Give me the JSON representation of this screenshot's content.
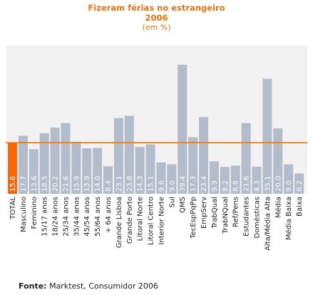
{
  "header": {
    "title_line1": "Fizeram férias no estrangeiro",
    "title_line2": "2006",
    "subtitle": "(em %)"
  },
  "footer": {
    "source_label": "Fonte:",
    "source_text": "Marktest, Consumidor 2006"
  },
  "colors": {
    "plot_background": "#f2f2f2",
    "bar": "#b3bccb",
    "highlight_bar": "#ff6600",
    "reference_line": "#e8720c",
    "value_label": "#ffffff",
    "title": "#e8720c"
  },
  "chart_data": {
    "type": "bar",
    "title": "Fizeram férias no estrangeiro 2006",
    "subtitle": "(em %)",
    "xlabel": "",
    "ylabel": "",
    "ylim": [
      0,
      42
    ],
    "grid": false,
    "legend": "none",
    "reference_line": 15.6,
    "highlight_index": 0,
    "categories": [
      "TOTAL",
      "Masculino",
      "Feminino",
      "15/17 anos",
      "18/24 anos",
      "25/34 anos",
      "35/44 anos",
      "45/54 anos",
      "55/64 anos",
      "+ 64 anos",
      "Grande Lisboa",
      "Grande Porto",
      "Litoral Norte",
      "Litoral Centro",
      "Interior Norte",
      "Sul",
      "QMS",
      "TecEspPqPp",
      "EmpServ",
      "TrabQual",
      "TrabNQual",
      "Ref/Pens",
      "Estudantes",
      "Domésticas",
      "Alta/Média Alta",
      "Média",
      "Média Baixa",
      "Baixa"
    ],
    "value_labels": [
      "15.6",
      "17.7",
      "13.6",
      "18.5",
      "20.2",
      "21.6",
      "15.9",
      "13.9",
      "14.0",
      "8.4",
      "23.1",
      "23.8",
      "14.3",
      "15.1",
      "9.6",
      "9.0",
      "39.4",
      "17.3",
      "23.4",
      "9.9",
      "8.2",
      "8.6",
      "21.6",
      "8.3",
      "35.1",
      "20.0",
      "9.0",
      "6.2"
    ],
    "values": [
      15.6,
      17.7,
      13.6,
      18.5,
      20.2,
      21.6,
      15.9,
      13.9,
      14.0,
      8.4,
      23.1,
      23.8,
      14.3,
      15.1,
      9.6,
      9.0,
      39.4,
      17.3,
      23.4,
      9.9,
      8.2,
      8.6,
      21.6,
      8.3,
      35.1,
      20.0,
      9.0,
      6.2
    ]
  }
}
